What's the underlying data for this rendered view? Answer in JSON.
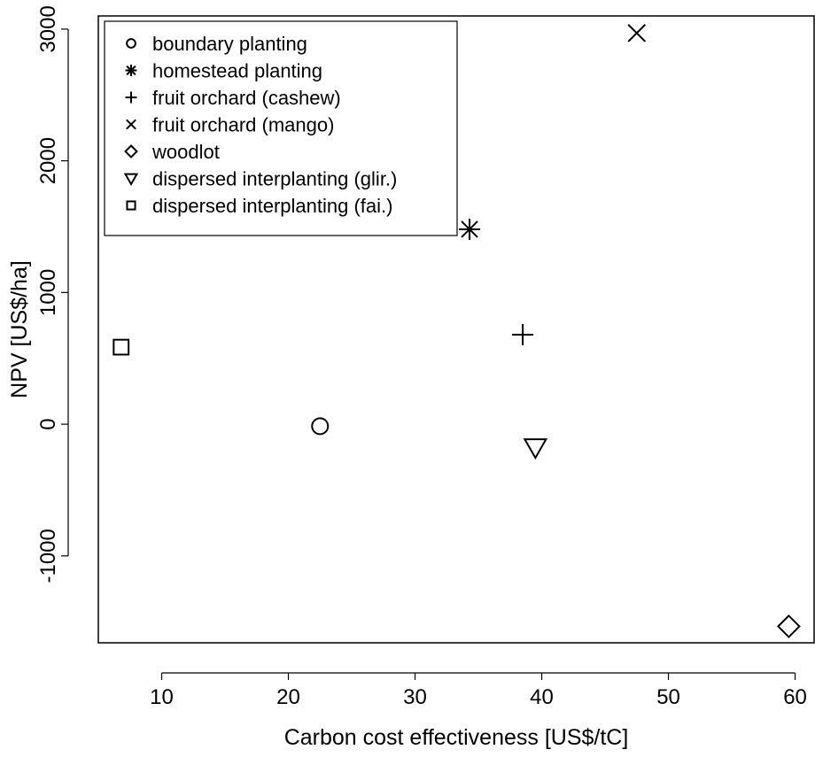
{
  "chart_data": {
    "type": "scatter",
    "title": "",
    "xlabel": "Carbon cost effectiveness [US$/tC]",
    "ylabel": "NPV [US$/ha]",
    "xlim": [
      5,
      61.5
    ],
    "ylim": [
      -1660,
      3100
    ],
    "xticks": [
      "10",
      "20",
      "30",
      "40",
      "50",
      "60"
    ],
    "yticks": [
      "-1000",
      "0",
      "1000",
      "2000",
      "3000"
    ],
    "grid": false,
    "legend_position": "top-left",
    "series": [
      {
        "name": "boundary planting",
        "marker": "circle",
        "points": [
          {
            "x": 22.5,
            "y": -15
          }
        ]
      },
      {
        "name": "homestead planting",
        "marker": "asterisk",
        "points": [
          {
            "x": 34.3,
            "y": 1480
          }
        ]
      },
      {
        "name": "fruit orchard (cashew)",
        "marker": "plus",
        "points": [
          {
            "x": 38.5,
            "y": 680
          }
        ]
      },
      {
        "name": "fruit orchard (mango)",
        "marker": "cross",
        "points": [
          {
            "x": 47.5,
            "y": 2970
          }
        ]
      },
      {
        "name": "woodlot",
        "marker": "diamond",
        "points": [
          {
            "x": 59.5,
            "y": -1535
          }
        ]
      },
      {
        "name": "dispersed interplanting (glir.)",
        "marker": "triangle-down",
        "points": [
          {
            "x": 39.5,
            "y": -175
          }
        ]
      },
      {
        "name": "dispersed interplanting (fai.)",
        "marker": "square",
        "points": [
          {
            "x": 6.8,
            "y": 585
          }
        ]
      }
    ]
  }
}
